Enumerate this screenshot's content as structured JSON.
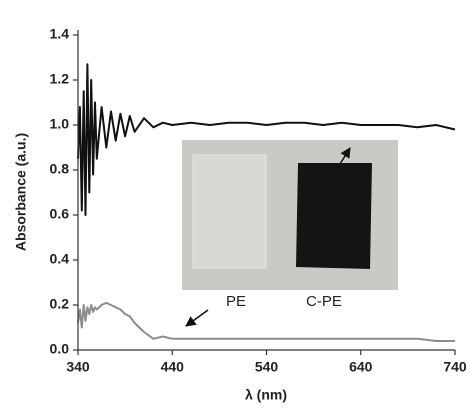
{
  "chart_data": {
    "type": "line",
    "x_label": "λ (nm)",
    "y_label": "Absorbance (a.u.)",
    "x": [
      340,
      342,
      344,
      346,
      348,
      350,
      352,
      354,
      356,
      358,
      360,
      365,
      370,
      375,
      380,
      385,
      390,
      395,
      400,
      410,
      420,
      430,
      440,
      460,
      480,
      500,
      520,
      540,
      560,
      580,
      600,
      620,
      640,
      660,
      680,
      700,
      720,
      740
    ],
    "series": [
      {
        "color": "#111111",
        "values": [
          0.85,
          1.08,
          0.62,
          1.15,
          0.6,
          1.27,
          0.7,
          1.2,
          0.78,
          1.1,
          0.85,
          1.08,
          0.9,
          1.06,
          0.93,
          1.05,
          0.95,
          1.04,
          0.97,
          1.03,
          0.99,
          1.01,
          1.0,
          1.01,
          1.0,
          1.01,
          1.01,
          1.0,
          1.01,
          1.01,
          1.0,
          1.01,
          1.0,
          1.0,
          1.0,
          0.99,
          1.0,
          0.98
        ]
      },
      {
        "color": "#8c8c8c",
        "values": [
          0.12,
          0.18,
          0.1,
          0.2,
          0.13,
          0.19,
          0.16,
          0.2,
          0.17,
          0.19,
          0.18,
          0.2,
          0.21,
          0.2,
          0.19,
          0.18,
          0.16,
          0.15,
          0.12,
          0.08,
          0.05,
          0.06,
          0.05,
          0.05,
          0.05,
          0.05,
          0.05,
          0.05,
          0.05,
          0.05,
          0.05,
          0.05,
          0.05,
          0.05,
          0.05,
          0.05,
          0.04,
          0.04
        ]
      }
    ],
    "annotations": [
      "PE",
      "C-PE"
    ],
    "xlim": [
      340,
      740
    ],
    "xticks": [
      340,
      440,
      540,
      640,
      740
    ],
    "ylim": [
      0,
      1.4
    ],
    "yticks": [
      {
        "value": 0,
        "label": "0.0"
      },
      0.2,
      0.4,
      0.6,
      0.8,
      {
        "value": 1,
        "label": "1.0"
      },
      1.2,
      1.4
    ],
    "grid": false
  }
}
